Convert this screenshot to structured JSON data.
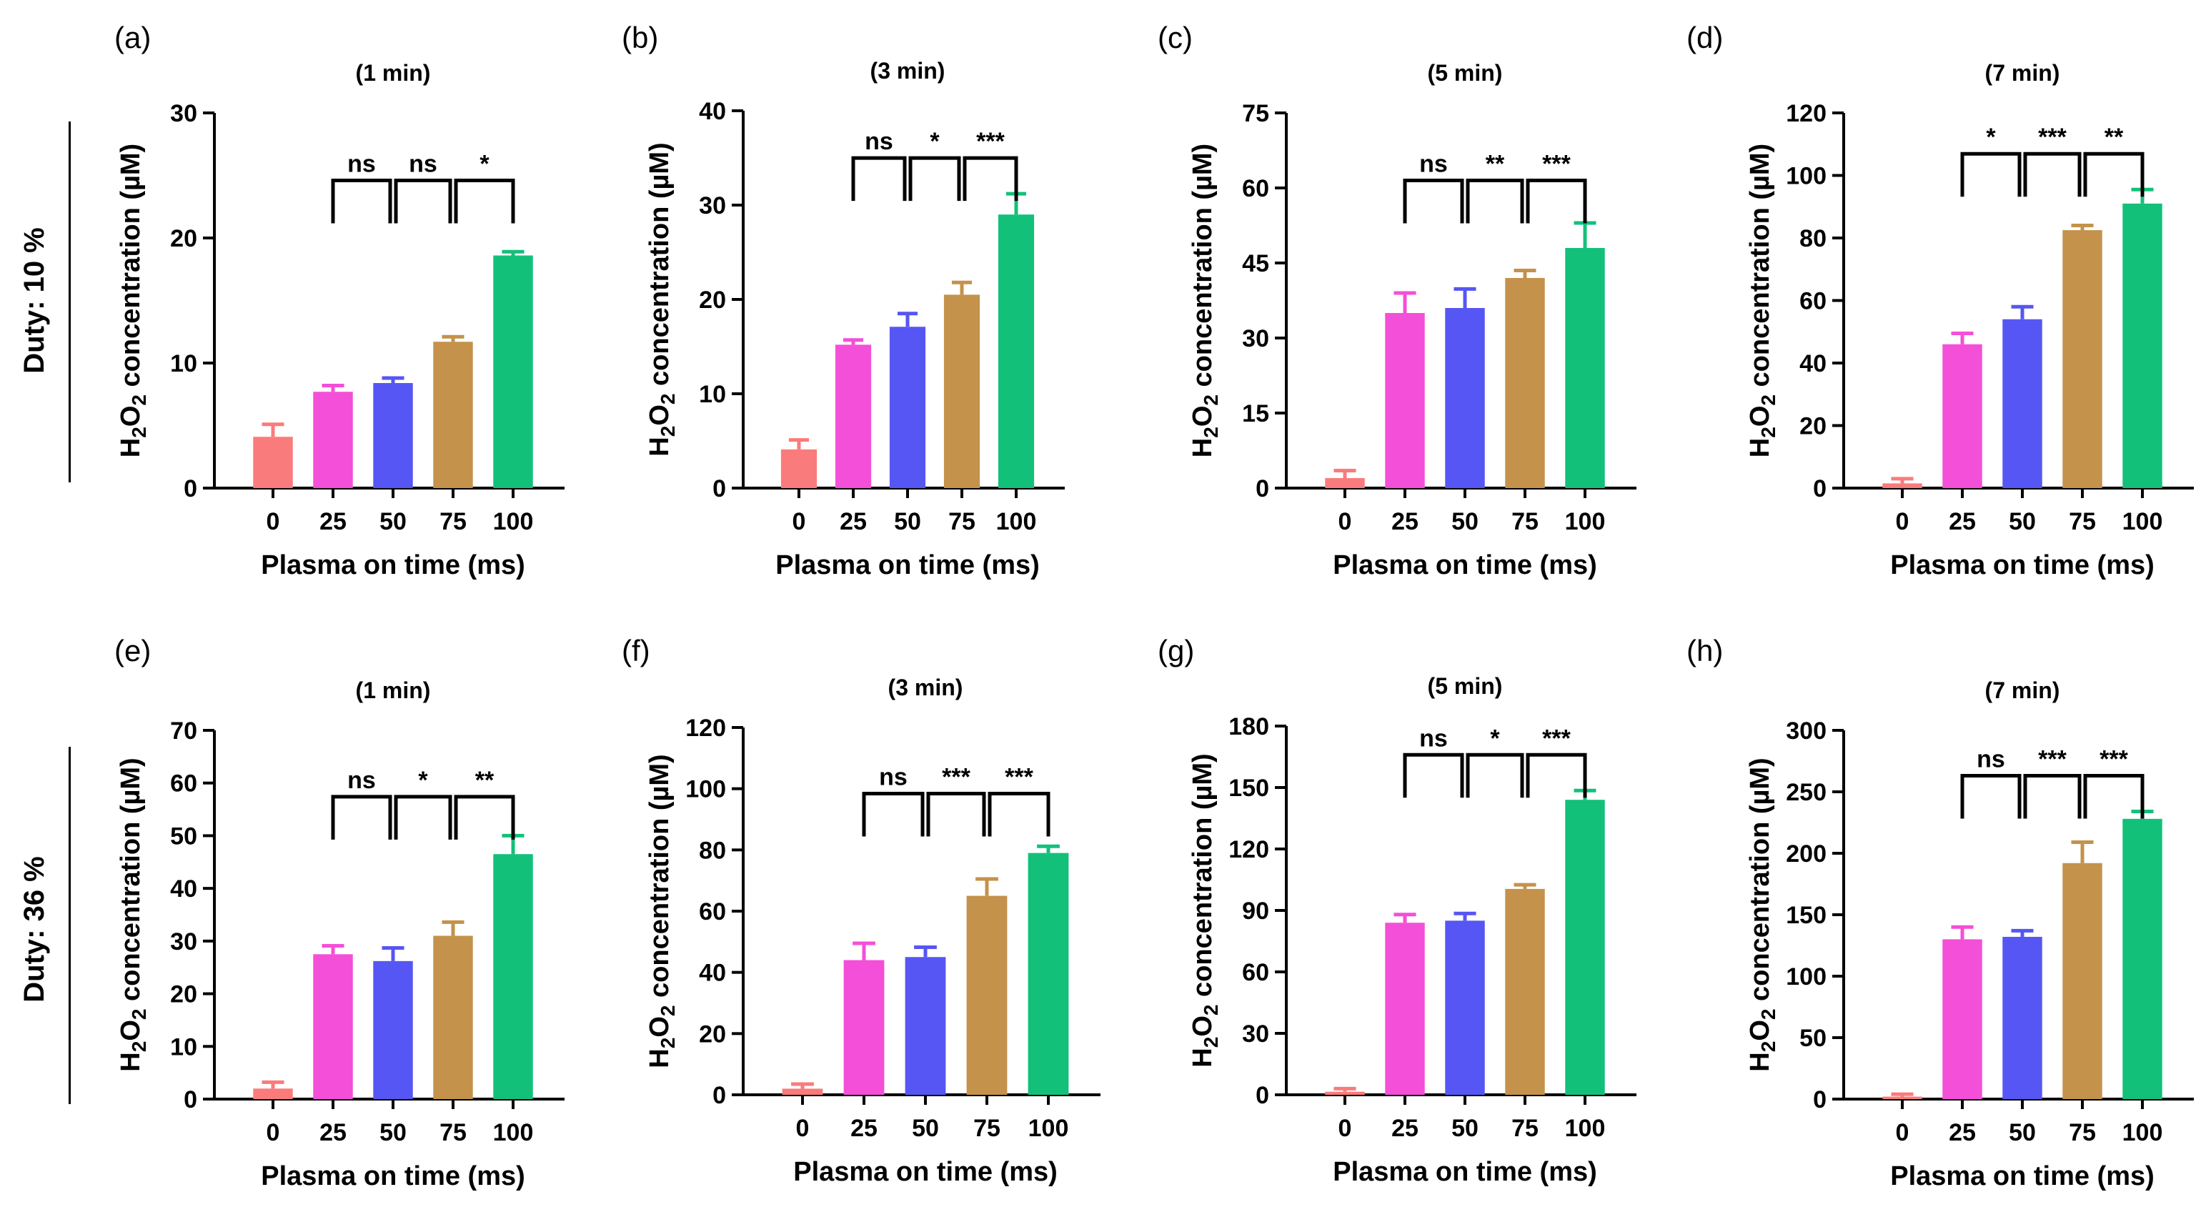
{
  "figure": {
    "row_labels": [
      "Duty: 10 %",
      "Duty: 36 %"
    ],
    "bar_colors": [
      "#fa7b7b",
      "#f44fd8",
      "#5656f4",
      "#c4924b",
      "#13c07a"
    ]
  },
  "chart_data": [
    {
      "panel": "(a)",
      "type": "bar",
      "title": "(1 min)",
      "xlabel": "Plasma on time (ms)",
      "ylabel": "H2O2 concentration (µM)",
      "categories": [
        "0",
        "25",
        "50",
        "75",
        "100"
      ],
      "values": [
        4.1,
        7.7,
        8.4,
        11.7,
        18.6
      ],
      "errors": [
        1.0,
        0.5,
        0.4,
        0.4,
        0.3
      ],
      "ylim": [
        0,
        30
      ],
      "yticks": [
        0,
        10,
        20,
        30
      ],
      "annotations": [
        "ns",
        "ns",
        "*"
      ],
      "annotation_pairs": [
        [
          1,
          2
        ],
        [
          2,
          3
        ],
        [
          3,
          4
        ]
      ]
    },
    {
      "panel": "(b)",
      "type": "bar",
      "title": "(3 min)",
      "xlabel": "Plasma on time (ms)",
      "ylabel": "H2O2 concentration (µM)",
      "categories": [
        "0",
        "25",
        "50",
        "75",
        "100"
      ],
      "values": [
        4.1,
        15.2,
        17.1,
        20.5,
        29.0
      ],
      "errors": [
        1.0,
        0.5,
        1.4,
        1.3,
        2.2
      ],
      "ylim": [
        0,
        40
      ],
      "yticks": [
        0,
        10,
        20,
        30,
        40
      ],
      "annotations": [
        "ns",
        "*",
        "***"
      ],
      "annotation_pairs": [
        [
          1,
          2
        ],
        [
          2,
          3
        ],
        [
          3,
          4
        ]
      ]
    },
    {
      "panel": "(c)",
      "type": "bar",
      "title": "(5 min)",
      "xlabel": "Plasma on time (ms)",
      "ylabel": "H2O2 concentration (µM)",
      "categories": [
        "0",
        "25",
        "50",
        "75",
        "100"
      ],
      "values": [
        2.0,
        35.0,
        36.0,
        42.0,
        48.0
      ],
      "errors": [
        1.5,
        4.0,
        3.8,
        1.5,
        5.0
      ],
      "ylim": [
        0,
        75
      ],
      "yticks": [
        0,
        15,
        30,
        45,
        60,
        75
      ],
      "annotations": [
        "ns",
        "**",
        "***"
      ],
      "annotation_pairs": [
        [
          1,
          2
        ],
        [
          2,
          3
        ],
        [
          3,
          4
        ]
      ]
    },
    {
      "panel": "(d)",
      "type": "bar",
      "title": "(7 min)",
      "xlabel": "Plasma on time (ms)",
      "ylabel": "H2O2 concentration (µM)",
      "categories": [
        "0",
        "25",
        "50",
        "75",
        "100"
      ],
      "values": [
        1.5,
        46.0,
        54.0,
        82.5,
        91.0
      ],
      "errors": [
        1.5,
        3.5,
        4.0,
        1.5,
        4.5
      ],
      "ylim": [
        0,
        120
      ],
      "yticks": [
        0,
        20,
        40,
        60,
        80,
        100,
        120
      ],
      "annotations": [
        "*",
        "***",
        "**"
      ],
      "annotation_pairs": [
        [
          1,
          2
        ],
        [
          2,
          3
        ],
        [
          3,
          4
        ]
      ]
    },
    {
      "panel": "(e)",
      "type": "bar",
      "title": "(1 min)",
      "xlabel": "Plasma on time (ms)",
      "ylabel": "H2O2 concentration (µM)",
      "categories": [
        "0",
        "25",
        "50",
        "75",
        "100"
      ],
      "values": [
        2.0,
        27.5,
        26.2,
        31.0,
        46.5
      ],
      "errors": [
        1.2,
        1.6,
        2.5,
        2.6,
        3.5
      ],
      "ylim": [
        0,
        70
      ],
      "yticks": [
        0,
        10,
        20,
        30,
        40,
        50,
        60,
        70
      ],
      "annotations": [
        "ns",
        "*",
        "**"
      ],
      "annotation_pairs": [
        [
          1,
          2
        ],
        [
          2,
          3
        ],
        [
          3,
          4
        ]
      ]
    },
    {
      "panel": "(f)",
      "type": "bar",
      "title": "(3 min)",
      "xlabel": "Plasma on time (ms)",
      "ylabel": "H2O2 concentration (µM)",
      "categories": [
        "0",
        "25",
        "50",
        "75",
        "100"
      ],
      "values": [
        2.0,
        44.0,
        45.0,
        65.0,
        79.0
      ],
      "errors": [
        1.5,
        5.5,
        3.2,
        5.5,
        2.2
      ],
      "ylim": [
        0,
        120
      ],
      "yticks": [
        0,
        20,
        40,
        60,
        80,
        100,
        120
      ],
      "annotations": [
        "ns",
        "***",
        "***"
      ],
      "annotation_pairs": [
        [
          1,
          2
        ],
        [
          2,
          3
        ],
        [
          3,
          4
        ]
      ]
    },
    {
      "panel": "(g)",
      "type": "bar",
      "title": "(5 min)",
      "xlabel": "Plasma on time (ms)",
      "ylabel": "H2O2 concentration (µM)",
      "categories": [
        "0",
        "25",
        "50",
        "75",
        "100"
      ],
      "values": [
        1.5,
        84.0,
        85.0,
        100.5,
        144.0
      ],
      "errors": [
        1.5,
        4.0,
        3.5,
        2.0,
        4.5
      ],
      "ylim": [
        0,
        180
      ],
      "yticks": [
        0,
        30,
        60,
        90,
        120,
        150,
        180
      ],
      "annotations": [
        "ns",
        "*",
        "***"
      ],
      "annotation_pairs": [
        [
          1,
          2
        ],
        [
          2,
          3
        ],
        [
          3,
          4
        ]
      ]
    },
    {
      "panel": "(h)",
      "type": "bar",
      "title": "(7 min)",
      "xlabel": "Plasma on time (ms)",
      "ylabel": "H2O2 concentration (µM)",
      "categories": [
        "0",
        "25",
        "50",
        "75",
        "100"
      ],
      "values": [
        2.0,
        130.0,
        132.0,
        192.0,
        228.0
      ],
      "errors": [
        2.0,
        10.0,
        5.0,
        17.0,
        6.0
      ],
      "ylim": [
        0,
        300
      ],
      "yticks": [
        0,
        50,
        100,
        150,
        200,
        250,
        300
      ],
      "annotations": [
        "ns",
        "***",
        "***"
      ],
      "annotation_pairs": [
        [
          1,
          2
        ],
        [
          2,
          3
        ],
        [
          3,
          4
        ]
      ]
    }
  ]
}
